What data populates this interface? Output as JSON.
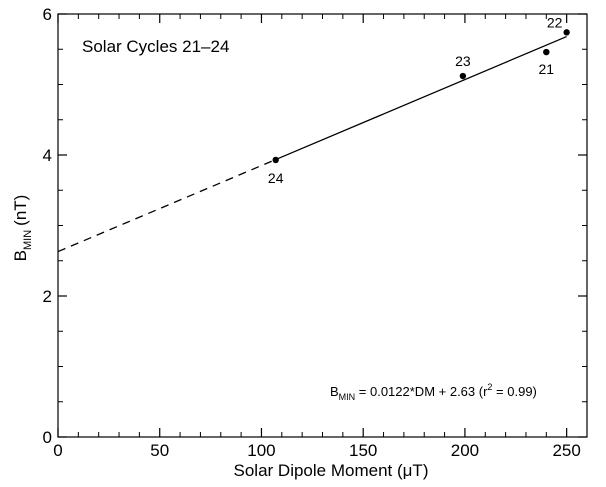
{
  "chart_data": {
    "type": "scatter",
    "annotation_title": "Solar Cycles 21–24",
    "xlabel": "Solar Dipole Moment (μT)",
    "ylabel_main": "B",
    "ylabel_sub": "MIN",
    "ylabel_unit": "(nT)",
    "xlim": [
      0,
      260
    ],
    "ylim": [
      0,
      6
    ],
    "x_ticks": [
      0,
      50,
      100,
      150,
      200,
      250
    ],
    "y_ticks": [
      0,
      2,
      4,
      6
    ],
    "x_tick_labels": [
      "0",
      "50",
      "100",
      "150",
      "200",
      "250"
    ],
    "y_tick_labels": [
      "0",
      "2",
      "4",
      "6"
    ],
    "points": [
      {
        "label": "21",
        "x": 240,
        "y": 5.46
      },
      {
        "label": "22",
        "x": 250,
        "y": 5.74
      },
      {
        "label": "23",
        "x": 199,
        "y": 5.12
      },
      {
        "label": "24",
        "x": 107,
        "y": 3.93
      }
    ],
    "fit": {
      "slope": 0.0122,
      "intercept": 2.63,
      "solid_range": [
        107,
        250
      ],
      "dashed_range": [
        0,
        107
      ]
    },
    "equation": {
      "lhs_main": "B",
      "lhs_sub": "MIN",
      "body": " = 0.0122*DM +  2.63   (r",
      "sup": "2",
      "tail": " = 0.99)"
    },
    "grid": false,
    "colors": {
      "line": "#000000",
      "point": "#000000",
      "background": "#ffffff"
    }
  }
}
